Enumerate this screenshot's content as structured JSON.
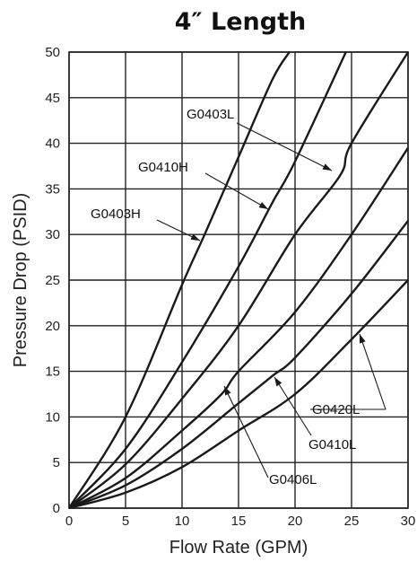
{
  "chart_data": {
    "type": "line",
    "title": "4″ Length",
    "xlabel": "Flow Rate (GPM)",
    "ylabel": "Pressure Drop (PSID)",
    "xlim": [
      0,
      30
    ],
    "ylim": [
      0,
      50
    ],
    "x_ticks": [
      "0",
      "5",
      "10",
      "15",
      "20",
      "25",
      "30"
    ],
    "y_ticks": [
      "0",
      "5",
      "10",
      "15",
      "20",
      "25",
      "30",
      "35",
      "40",
      "45",
      "50"
    ],
    "grid": true,
    "legend": "none",
    "series": [
      {
        "name": "G0403H",
        "x": [
          0,
          5,
          10,
          12,
          15,
          18,
          19.5
        ],
        "y": [
          0,
          10,
          24.5,
          30,
          38.5,
          47,
          50
        ]
      },
      {
        "name": "G0410H",
        "x": [
          0,
          5,
          10,
          15,
          18,
          20,
          24.5
        ],
        "y": [
          0,
          6.5,
          16,
          26.5,
          33.5,
          38,
          50
        ]
      },
      {
        "name": "G0403L",
        "x": [
          0,
          5,
          10,
          15,
          20,
          24,
          25,
          30
        ],
        "y": [
          0,
          4.8,
          12,
          20,
          30,
          36.5,
          40,
          50
        ]
      },
      {
        "name": "G0406L",
        "x": [
          0,
          5,
          10,
          13.5,
          15,
          20,
          25,
          30
        ],
        "y": [
          0,
          3.3,
          8.5,
          12.5,
          15,
          21.5,
          30,
          39.5
        ]
      },
      {
        "name": "G0410L",
        "x": [
          0,
          5,
          10,
          15,
          18,
          20,
          25,
          30
        ],
        "y": [
          0,
          2.5,
          6.5,
          11.5,
          14.5,
          16.5,
          23.5,
          31.5
        ]
      },
      {
        "name": "G0420L",
        "x": [
          0,
          5,
          10,
          15,
          20,
          25,
          30
        ],
        "y": [
          0,
          1.7,
          4.5,
          8.5,
          12.5,
          18.5,
          25
        ]
      }
    ]
  }
}
